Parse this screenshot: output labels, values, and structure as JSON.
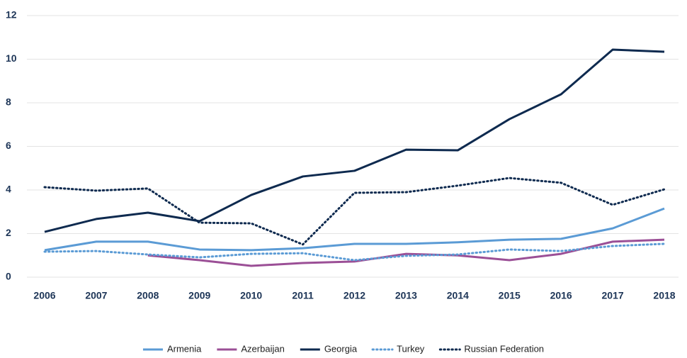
{
  "chart_data": {
    "type": "line",
    "categories": [
      "2006",
      "2007",
      "2008",
      "2009",
      "2010",
      "2011",
      "2012",
      "2013",
      "2014",
      "2015",
      "2016",
      "2017",
      "2018"
    ],
    "series": [
      {
        "name": "Armenia",
        "color": "#5b9bd5",
        "dash": "solid",
        "values": [
          1.24,
          1.63,
          1.63,
          1.27,
          1.24,
          1.33,
          1.53,
          1.53,
          1.6,
          1.72,
          1.76,
          2.24,
          3.15
        ]
      },
      {
        "name": "Azerbaijan",
        "color": "#9b4f96",
        "dash": "solid",
        "values": [
          null,
          null,
          1.0,
          0.78,
          0.52,
          0.65,
          0.72,
          1.07,
          1.0,
          0.78,
          1.07,
          1.63,
          1.72
        ]
      },
      {
        "name": "Georgia",
        "color": "#0e2a4f",
        "dash": "solid",
        "values": [
          2.08,
          2.67,
          2.96,
          2.57,
          3.77,
          4.62,
          4.88,
          5.85,
          5.82,
          7.25,
          8.39,
          10.44,
          10.34
        ]
      },
      {
        "name": "Turkey",
        "color": "#5b9bd5",
        "dash": "dotted",
        "values": [
          1.17,
          1.2,
          1.04,
          0.91,
          1.07,
          1.1,
          0.78,
          0.98,
          1.04,
          1.27,
          1.2,
          1.43,
          1.53
        ]
      },
      {
        "name": "Russian Federation",
        "color": "#0e2a4f",
        "dash": "dotted",
        "values": [
          4.13,
          3.97,
          4.07,
          2.5,
          2.47,
          1.5,
          3.87,
          3.9,
          4.2,
          4.55,
          4.33,
          3.32,
          4.03
        ]
      }
    ],
    "ylim": [
      0,
      12
    ],
    "yticks": [
      0,
      2,
      4,
      6,
      8,
      10,
      12
    ],
    "grid": true,
    "legend": "bottom"
  }
}
